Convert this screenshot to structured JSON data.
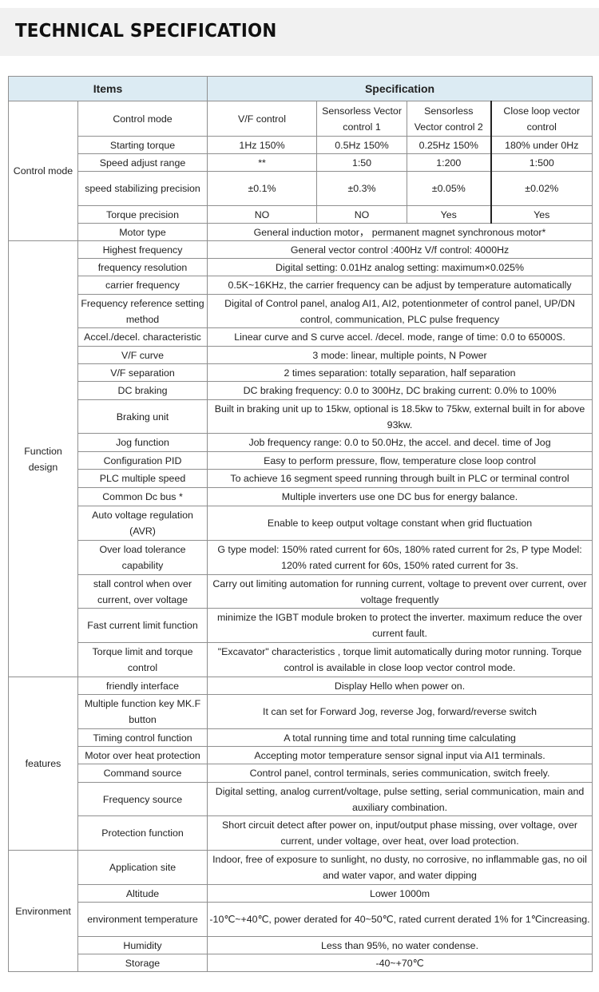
{
  "title": "TECHNICAL SPECIFICATION",
  "header": {
    "items": "Items",
    "specification": "Specification"
  },
  "groups": [
    {
      "label": "Control mode",
      "rows": [
        {
          "item": "Control mode",
          "specs": [
            "V/F control",
            "Sensorless Vector control 1",
            "Sensorless Vector control 2",
            "Close loop vector control"
          ]
        },
        {
          "item": "Starting torque",
          "specs": [
            "1Hz 150%",
            "0.5Hz 150%",
            "0.25Hz 150%",
            "180% under 0Hz"
          ]
        },
        {
          "item": "Speed adjust range",
          "specs": [
            "**",
            "1:50",
            "1:200",
            "1:500"
          ]
        },
        {
          "item": "speed stabilizing precision",
          "specs": [
            "±0.1%",
            "±0.3%",
            "±0.05%",
            "±0.02%"
          ]
        },
        {
          "item": "Torque precision",
          "specs": [
            "NO",
            "NO",
            "Yes",
            "Yes"
          ]
        },
        {
          "item": "Motor type",
          "spec": "General induction motor， permanent magnet synchronous motor*"
        }
      ]
    },
    {
      "label": "Function design",
      "rows": [
        {
          "item": "Highest frequency",
          "spec": "General vector control :400Hz   V/f control:  4000Hz"
        },
        {
          "item": "frequency resolution",
          "spec": "Digital setting: 0.01Hz   analog setting: maximum×0.025%"
        },
        {
          "item": "carrier frequency",
          "spec": "0.5K~16KHz, the carrier frequency can be adjust by temperature automatically"
        },
        {
          "item": "Frequency reference setting method",
          "spec": "Digital of Control panel, analog AI1, AI2, potentionmeter of control panel, UP/DN control, communication, PLC pulse frequency"
        },
        {
          "item": "Accel./decel. characteristic",
          "spec": "Linear curve and S curve accel. /decel. mode, range of time: 0.0 to 65000S."
        },
        {
          "item": "V/F curve",
          "spec": "3 mode: linear, multiple points, N Power"
        },
        {
          "item": "V/F separation",
          "spec": "2 times separation: totally separation, half separation"
        },
        {
          "item": "DC braking",
          "spec": "DC braking frequency: 0.0 to 300Hz, DC braking current: 0.0% to 100%"
        },
        {
          "item": "Braking unit",
          "spec": "Built in braking unit up to 15kw, optional is 18.5kw to 75kw, external built in for above 93kw."
        },
        {
          "item": "Jog function",
          "spec": "Job frequency range: 0.0 to 50.0Hz, the accel. and decel. time of Jog"
        },
        {
          "item": "Configuration PID",
          "spec": "Easy to perform pressure, flow, temperature close loop control"
        },
        {
          "item": "PLC   multiple speed",
          "spec": "To achieve 16 segment speed running through built in PLC or terminal control"
        },
        {
          "item": "Common Dc bus *",
          "spec": "Multiple inverters use one DC bus for energy balance."
        },
        {
          "item": "Auto voltage regulation (AVR)",
          "spec": "Enable to keep output voltage constant when grid fluctuation"
        },
        {
          "item": "Over load tolerance capability",
          "spec": "G type model: 150% rated current for 60s, 180% rated current for 2s, P type Model: 120% rated current for 60s, 150% rated current for 3s."
        },
        {
          "item": "stall control when over current, over voltage",
          "spec": "Carry out limiting automation for running current, voltage to prevent over current, over voltage frequently"
        },
        {
          "item": "Fast current limit function",
          "spec": "minimize the IGBT module broken to protect the inverter. maximum reduce the over current fault."
        },
        {
          "item": "Torque limit and torque control",
          "spec": "\"Excavator\" characteristics , torque limit automatically during motor running. Torque control is available in close loop vector control mode."
        }
      ]
    },
    {
      "label": "features",
      "rows": [
        {
          "item": "friendly interface",
          "spec": "Display Hello when power on."
        },
        {
          "item": "Multiple function key MK.F button",
          "spec": "It can set for Forward Jog, reverse Jog, forward/reverse switch"
        },
        {
          "item": "Timing control function",
          "spec": "A total running time and total running time calculating"
        },
        {
          "item": "Motor over heat protection",
          "spec": "Accepting motor temperature sensor signal input via AI1 terminals."
        },
        {
          "item": "Command source",
          "spec": "Control panel, control terminals, series communication, switch freely."
        },
        {
          "item": "Frequency source",
          "spec": "Digital setting, analog current/voltage, pulse setting, serial communication, main and auxiliary combination."
        },
        {
          "item": "Protection function",
          "spec": "Short circuit detect after power on, input/output phase missing, over voltage, over current, under voltage, over heat, over load protection."
        }
      ]
    },
    {
      "label": "Environment",
      "rows": [
        {
          "item": "Application site",
          "spec": "Indoor, free of exposure to sunlight, no dusty, no corrosive, no inflammable gas, no oil and water vapor, and water dipping"
        },
        {
          "item": "Altitude",
          "spec": "Lower 1000m"
        },
        {
          "item": "environment temperature",
          "spec": "-10℃~+40℃, power derated for 40~50℃, rated current derated 1% for 1℃increasing."
        },
        {
          "item": "Humidity",
          "spec": "Less than 95%, no water condense."
        },
        {
          "item": "Storage",
          "spec": "-40~+70℃"
        }
      ]
    }
  ]
}
